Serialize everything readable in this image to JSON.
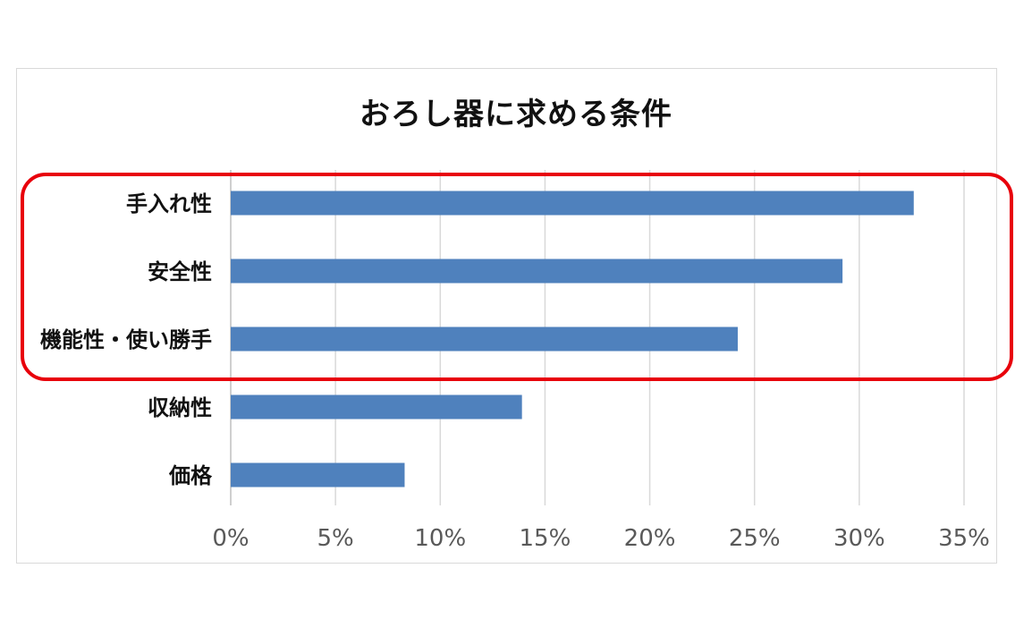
{
  "chart_data": {
    "type": "bar",
    "orientation": "horizontal",
    "title": "おろし器に求める条件",
    "categories": [
      "手入れ性",
      "安全性",
      "機能性・使い勝手",
      "収納性",
      "価格"
    ],
    "values": [
      32.6,
      29.2,
      24.2,
      13.9,
      8.3
    ],
    "xlim": [
      0,
      35
    ],
    "x_ticks": [
      "0%",
      "5%",
      "10%",
      "15%",
      "20%",
      "25%",
      "30%",
      "35%"
    ],
    "grid": true,
    "bar_color": "#4f81bd",
    "highlight_color": "#e8000b"
  }
}
